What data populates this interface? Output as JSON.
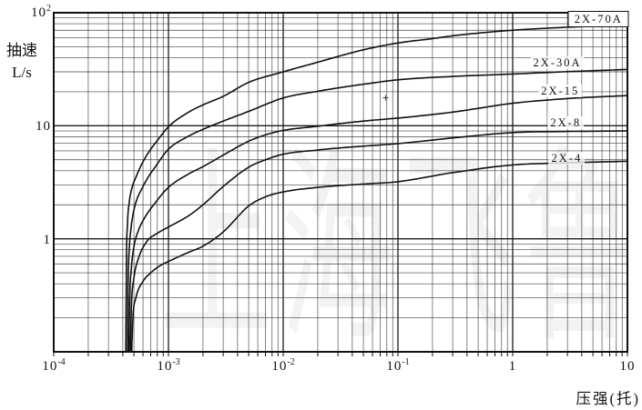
{
  "chart_data": {
    "type": "line",
    "scale": "log-log",
    "grid": {
      "minor": true,
      "major_color": "#1b1b1b",
      "minor_color": "#2e2e2e",
      "frame_color": "#111111"
    },
    "curve_color": "#101010",
    "watermark": "上海飞鲁",
    "x_axis": {
      "label": "压强(托)",
      "min": 0.0001,
      "max": 10,
      "ticks": [
        {
          "v": 0.0001,
          "base": "10",
          "exp": "-4"
        },
        {
          "v": 0.001,
          "base": "10",
          "exp": "-3"
        },
        {
          "v": 0.01,
          "base": "10",
          "exp": "-2"
        },
        {
          "v": 0.1,
          "base": "10",
          "exp": "-1"
        },
        {
          "v": 1,
          "base": "1",
          "exp": ""
        },
        {
          "v": 10,
          "base": "10",
          "exp": ""
        }
      ]
    },
    "y_axis": {
      "label_line1": "抽速",
      "label_line2": "L/s",
      "min": 0.1,
      "max": 100,
      "ticks": [
        {
          "v": 100,
          "base": "10",
          "exp": "2"
        },
        {
          "v": 10,
          "base": "10",
          "exp": ""
        },
        {
          "v": 1,
          "base": "1",
          "exp": ""
        }
      ]
    },
    "artifact_plus_at": {
      "p": 0.078,
      "s": 17.7
    },
    "series": [
      {
        "name": "2X-70A",
        "boxed_label": true,
        "label_at": {
          "p": 5.6,
          "s": 88
        },
        "points": [
          [
            0.000425,
            0.1
          ],
          [
            0.00043,
            0.6
          ],
          [
            0.00044,
            1.4
          ],
          [
            0.000455,
            2.1
          ],
          [
            0.00048,
            2.8
          ],
          [
            0.00052,
            3.5
          ],
          [
            0.0006,
            4.8
          ],
          [
            0.0007,
            6.2
          ],
          [
            0.0008,
            7.4
          ],
          [
            0.001,
            9.8
          ],
          [
            0.0015,
            13.2
          ],
          [
            0.002,
            15.3
          ],
          [
            0.003,
            18.2
          ],
          [
            0.005,
            24.2
          ],
          [
            0.01,
            30
          ],
          [
            0.02,
            36.5
          ],
          [
            0.03,
            41
          ],
          [
            0.05,
            47
          ],
          [
            0.1,
            54
          ],
          [
            0.2,
            59
          ],
          [
            0.3,
            62.5
          ],
          [
            0.5,
            66
          ],
          [
            1,
            70
          ],
          [
            2,
            73
          ],
          [
            5,
            76
          ],
          [
            10,
            78
          ]
        ]
      },
      {
        "name": "2X-30A",
        "boxed_label": false,
        "label_at": {
          "p": 2.45,
          "s": 36
        },
        "points": [
          [
            0.00044,
            0.1
          ],
          [
            0.000445,
            0.4
          ],
          [
            0.000455,
            0.8
          ],
          [
            0.00047,
            1.2
          ],
          [
            0.0005,
            1.8
          ],
          [
            0.0006,
            2.9
          ],
          [
            0.0008,
            4.6
          ],
          [
            0.001,
            6.2
          ],
          [
            0.0015,
            8.1
          ],
          [
            0.002,
            9.3
          ],
          [
            0.003,
            11
          ],
          [
            0.005,
            13.4
          ],
          [
            0.01,
            17.6
          ],
          [
            0.02,
            20.2
          ],
          [
            0.03,
            21.6
          ],
          [
            0.05,
            23.3
          ],
          [
            0.1,
            25.5
          ],
          [
            0.3,
            27.3
          ],
          [
            1,
            28.7
          ],
          [
            3,
            30.1
          ],
          [
            10,
            31.5
          ]
        ]
      },
      {
        "name": "2X-15",
        "boxed_label": false,
        "label_at": {
          "p": 2.6,
          "s": 20.3
        },
        "points": [
          [
            0.000452,
            0.1
          ],
          [
            0.00046,
            0.3
          ],
          [
            0.000475,
            0.55
          ],
          [
            0.0005,
            0.85
          ],
          [
            0.00055,
            1.2
          ],
          [
            0.0006,
            1.45
          ],
          [
            0.0008,
            2.2
          ],
          [
            0.001,
            2.85
          ],
          [
            0.0015,
            3.75
          ],
          [
            0.002,
            4.35
          ],
          [
            0.003,
            5.5
          ],
          [
            0.005,
            7.3
          ],
          [
            0.007,
            8.3
          ],
          [
            0.01,
            9.1
          ],
          [
            0.02,
            9.9
          ],
          [
            0.03,
            10.4
          ],
          [
            0.05,
            11
          ],
          [
            0.1,
            11.7
          ],
          [
            0.3,
            13.2
          ],
          [
            1,
            15.8
          ],
          [
            3,
            17.4
          ],
          [
            10,
            18.5
          ]
        ]
      },
      {
        "name": "2X-8",
        "boxed_label": false,
        "label_at": {
          "p": 2.9,
          "s": 10.6
        },
        "points": [
          [
            0.000465,
            0.1
          ],
          [
            0.000475,
            0.25
          ],
          [
            0.0005,
            0.45
          ],
          [
            0.00055,
            0.68
          ],
          [
            0.00065,
            0.95
          ],
          [
            0.0008,
            1.12
          ],
          [
            0.001,
            1.27
          ],
          [
            0.0015,
            1.6
          ],
          [
            0.002,
            2.0
          ],
          [
            0.003,
            2.9
          ],
          [
            0.005,
            4.3
          ],
          [
            0.007,
            5.0
          ],
          [
            0.01,
            5.6
          ],
          [
            0.02,
            6.1
          ],
          [
            0.03,
            6.35
          ],
          [
            0.05,
            6.6
          ],
          [
            0.1,
            6.95
          ],
          [
            0.3,
            7.8
          ],
          [
            1,
            8.7
          ],
          [
            3,
            8.9
          ],
          [
            10,
            9.0
          ]
        ]
      },
      {
        "name": "2X-4",
        "boxed_label": false,
        "label_at": {
          "p": 2.96,
          "s": 5.15
        },
        "points": [
          [
            0.000478,
            0.1
          ],
          [
            0.00049,
            0.2
          ],
          [
            0.00052,
            0.3
          ],
          [
            0.0006,
            0.42
          ],
          [
            0.0007,
            0.5
          ],
          [
            0.00085,
            0.58
          ],
          [
            0.001,
            0.63
          ],
          [
            0.0015,
            0.76
          ],
          [
            0.002,
            0.86
          ],
          [
            0.003,
            1.15
          ],
          [
            0.005,
            1.95
          ],
          [
            0.007,
            2.35
          ],
          [
            0.01,
            2.6
          ],
          [
            0.02,
            2.85
          ],
          [
            0.03,
            2.95
          ],
          [
            0.05,
            3.05
          ],
          [
            0.1,
            3.2
          ],
          [
            0.3,
            3.85
          ],
          [
            1,
            4.5
          ],
          [
            3,
            4.7
          ],
          [
            10,
            4.85
          ]
        ]
      }
    ]
  }
}
